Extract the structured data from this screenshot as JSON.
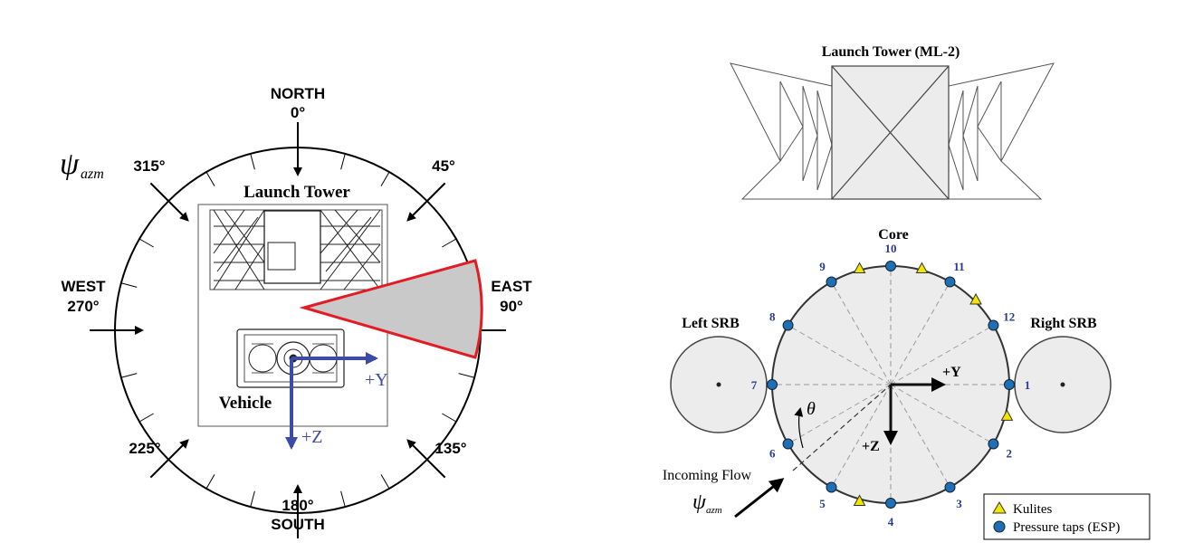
{
  "left_diagram": {
    "psi_symbol": "ψ",
    "psi_subscript": "azm",
    "compass": {
      "north": "NORTH",
      "north_deg": "0°",
      "south": "SOUTH",
      "south_deg": "180°",
      "west": "WEST",
      "west_deg": "270°",
      "east": "EAST",
      "east_deg": "90°",
      "ne_deg": "45°",
      "nw_deg": "315°",
      "se_deg": "135°",
      "sw_deg": "225°"
    },
    "launch_tower_label": "Launch Tower",
    "vehicle_label": "Vehicle",
    "plus_y": "+Y",
    "plus_z": "+Z",
    "highlight_color": "#e31b23",
    "axis_color": "#3d4aa8"
  },
  "right_diagram": {
    "tower_title": "Launch Tower (ML-2)",
    "core_label": "Core",
    "left_srb_label": "Left SRB",
    "right_srb_label": "Right SRB",
    "theta": "θ",
    "plus_y": "+Y",
    "plus_z": "+Z",
    "incoming_flow": "Incoming Flow",
    "psi_symbol": "ψ",
    "psi_subscript": "azm",
    "port_numbers": [
      "1",
      "2",
      "3",
      "4",
      "5",
      "6",
      "7",
      "8",
      "9",
      "10",
      "11",
      "12"
    ],
    "legend": {
      "kulites": "Kulites",
      "pressure_taps": "Pressure taps (ESP)"
    },
    "tap_color": "#1f6fb5",
    "kulite_color": "#f2e600",
    "number_color": "#2a3b8f"
  }
}
